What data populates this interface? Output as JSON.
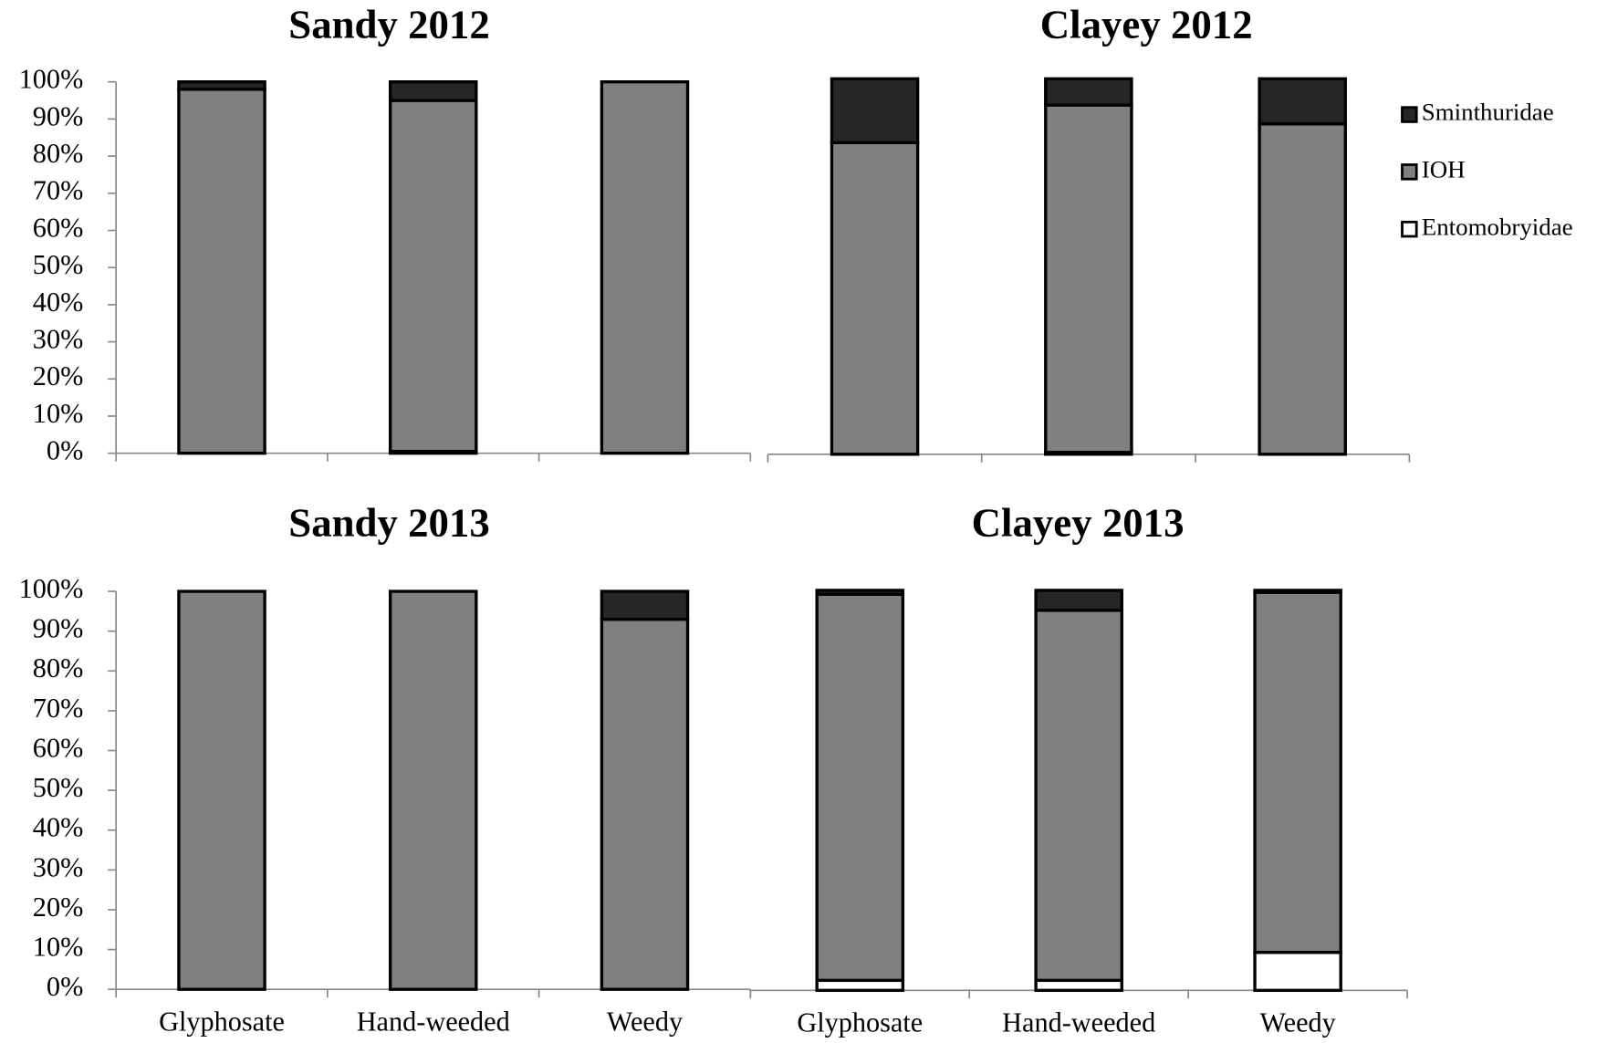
{
  "chart_data": [
    {
      "type": "bar",
      "stacked": true,
      "title": "Sandy 2012",
      "categories": [
        null,
        null,
        null
      ],
      "series": [
        {
          "color": "#ffffff",
          "values": [
            0,
            0.5,
            0
          ]
        },
        {
          "color": "#808080",
          "values": [
            98,
            94.5,
            100
          ]
        },
        {
          "color": "#262626",
          "values": [
            2,
            5,
            0
          ]
        }
      ],
      "ylim": [
        0,
        100
      ],
      "yticks": [
        {
          "value": 0,
          "label": "0%"
        },
        {
          "value": 10,
          "label": "10%"
        },
        {
          "value": 20,
          "label": "20%"
        },
        {
          "value": 30,
          "label": "30%"
        },
        {
          "value": 40,
          "label": "40%"
        },
        {
          "value": 50,
          "label": "50%"
        },
        {
          "value": 60,
          "label": "60%"
        },
        {
          "value": 70,
          "label": "70%"
        },
        {
          "value": 80,
          "label": "80%"
        },
        {
          "value": 90,
          "label": "90%"
        },
        {
          "value": 100,
          "label": "100%"
        }
      ]
    },
    {
      "type": "bar",
      "stacked": true,
      "title": "Clayey 2012",
      "categories": [
        null,
        null,
        null
      ],
      "series": [
        {
          "name": "Entomobryidae",
          "color": "#ffffff",
          "values": [
            0,
            0.5,
            0
          ]
        },
        {
          "name": "IOH",
          "color": "#808080",
          "values": [
            83,
            92.5,
            88
          ]
        },
        {
          "name": "Sminthuridae",
          "color": "#262626",
          "values": [
            17,
            7,
            12
          ]
        }
      ],
      "ylim": [
        0,
        100
      ],
      "legend": "right"
    },
    {
      "type": "bar",
      "stacked": true,
      "title": "Sandy 2013",
      "categories": [
        "Glyphosate",
        "Hand-weeded",
        "Weedy"
      ],
      "series": [
        {
          "color": "#ffffff",
          "values": [
            0,
            0,
            0
          ]
        },
        {
          "color": "#808080",
          "values": [
            100,
            100,
            93
          ]
        },
        {
          "color": "#262626",
          "values": [
            0,
            0,
            7
          ]
        }
      ],
      "ylim": [
        0,
        100
      ],
      "yticks": [
        {
          "value": 0,
          "label": "0%"
        },
        {
          "value": 10,
          "label": "10%"
        },
        {
          "value": 20,
          "label": "20%"
        },
        {
          "value": 30,
          "label": "30%"
        },
        {
          "value": 40,
          "label": "40%"
        },
        {
          "value": 50,
          "label": "50%"
        },
        {
          "value": 60,
          "label": "60%"
        },
        {
          "value": 70,
          "label": "70%"
        },
        {
          "value": 80,
          "label": "80%"
        },
        {
          "value": 90,
          "label": "90%"
        },
        {
          "value": 100,
          "label": "100%"
        }
      ]
    },
    {
      "type": "bar",
      "stacked": true,
      "title": "Clayey 2013",
      "categories": [
        "Glyphosate",
        "Hand-weeded",
        "Weedy"
      ],
      "series": [
        {
          "color": "#ffffff",
          "values": [
            2.5,
            2.5,
            9.5
          ]
        },
        {
          "color": "#808080",
          "values": [
            96.5,
            92.5,
            90
          ]
        },
        {
          "color": "#262626",
          "values": [
            1,
            5,
            0.5
          ]
        }
      ],
      "ylim": [
        0,
        100
      ]
    }
  ]
}
